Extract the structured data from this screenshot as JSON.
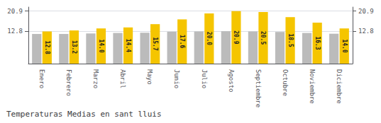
{
  "chart_data": {
    "type": "bar",
    "title": "Temperaturas Medias en sant lluis",
    "categories": [
      "Enero",
      "Febrero",
      "Marzo",
      "Abril",
      "Mayo",
      "Junio",
      "Julio",
      "Agosto",
      "Septiembre",
      "Octubre",
      "Noviembre",
      "Diciembre"
    ],
    "series": [
      {
        "color": "#BBBBBB",
        "values": [
          11.8,
          11.8,
          12.0,
          12.2,
          12.3,
          12.7,
          12.8,
          12.9,
          12.8,
          12.6,
          12.2,
          11.9
        ]
      },
      {
        "color": "#F5C500",
        "values": [
          12.8,
          13.2,
          14.0,
          14.4,
          15.7,
          17.6,
          20.0,
          20.9,
          20.5,
          18.5,
          16.3,
          14.0
        ],
        "data_labels": true,
        "value_labels": [
          "12.8",
          "13.2",
          "14.0",
          "14.4",
          "15.7",
          "17.6",
          "20.0",
          "20.9",
          "20.5",
          "18.5",
          "16.3",
          "14.0"
        ]
      }
    ],
    "ylim": [
      0,
      22.5
    ],
    "yticks": [
      12.8,
      20.9
    ],
    "y2lim": [
      0,
      22.5
    ],
    "y2ticks": [
      12.8,
      20.9
    ],
    "grid": true
  }
}
